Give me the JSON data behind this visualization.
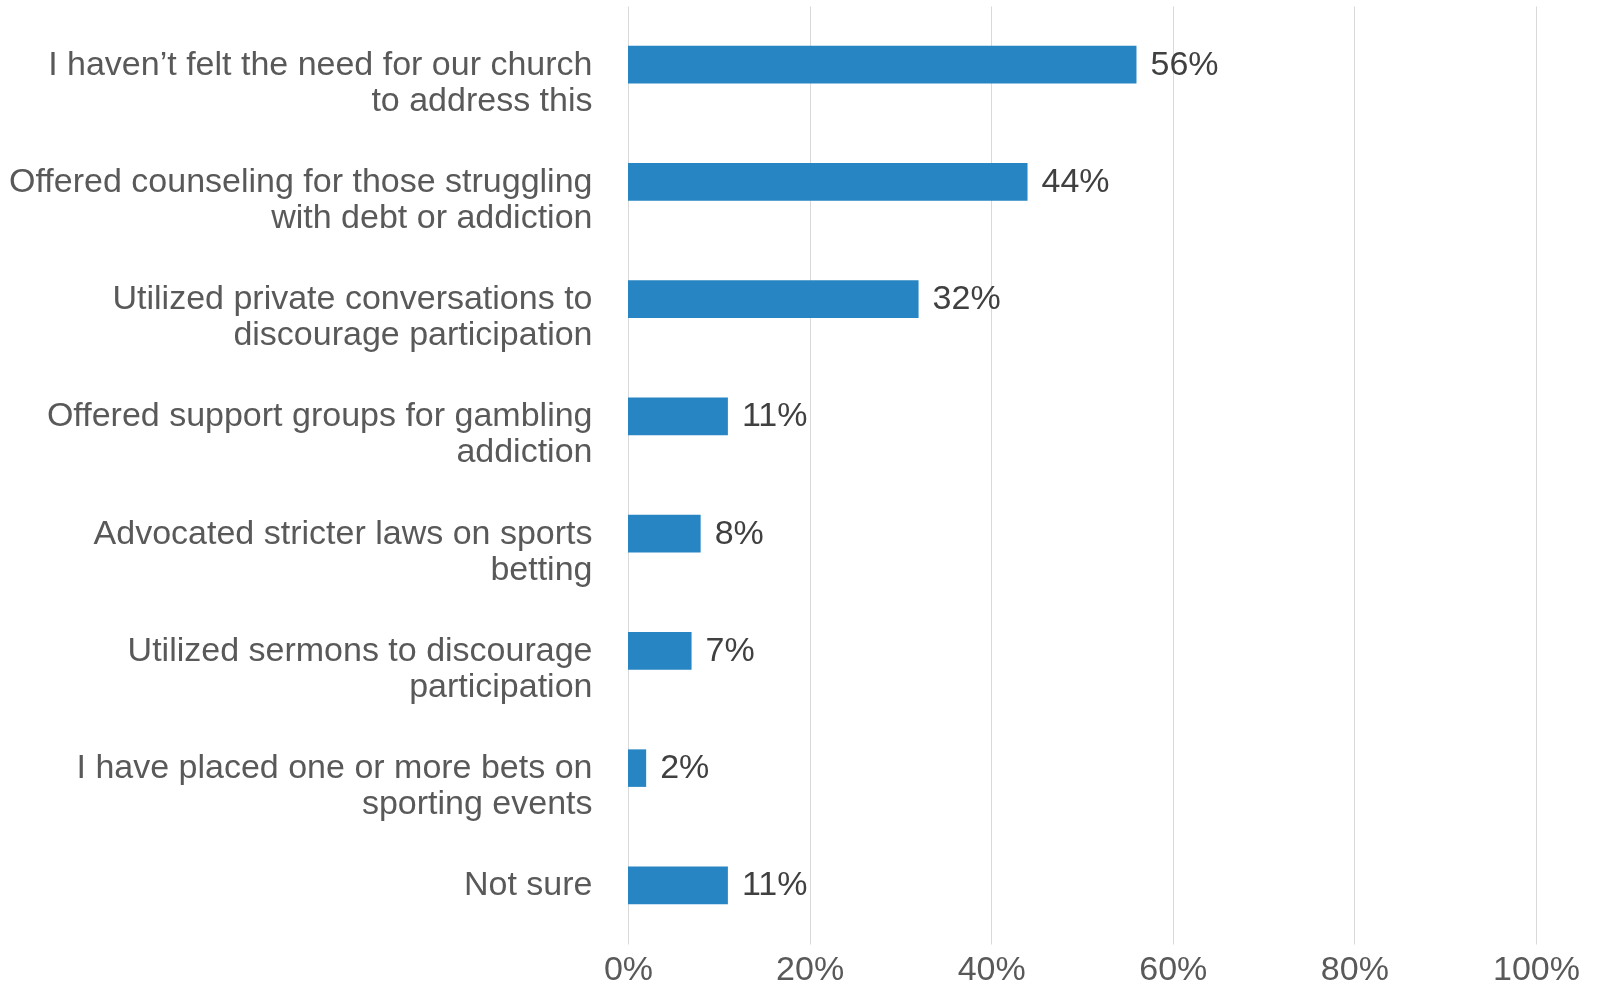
{
  "chart_data": {
    "type": "bar",
    "orientation": "horizontal",
    "categories": [
      "I haven’t felt the need for our church to address this",
      "Offered counseling for those struggling with debt or addiction",
      "Utilized private conversations to discourage participation",
      "Offered support groups for gambling addiction",
      "Advocated stricter laws on sports betting",
      "Utilized sermons to discourage participation",
      "I have placed one or more bets on sporting events",
      "Not sure"
    ],
    "values": [
      56,
      44,
      32,
      11,
      8,
      7,
      2,
      11
    ],
    "value_labels": [
      "56%",
      "44%",
      "32%",
      "11%",
      "8%",
      "7%",
      "2%",
      "11%"
    ],
    "color": "#2685c2",
    "xlim": [
      0,
      100
    ],
    "xticks": [
      {
        "value": 0,
        "label": "0%"
      },
      {
        "value": 20,
        "label": "20%"
      },
      {
        "value": 40,
        "label": "40%"
      },
      {
        "value": 60,
        "label": "60%"
      },
      {
        "value": 80,
        "label": "80%"
      },
      {
        "value": 100,
        "label": "100%"
      }
    ],
    "grid": "x"
  }
}
